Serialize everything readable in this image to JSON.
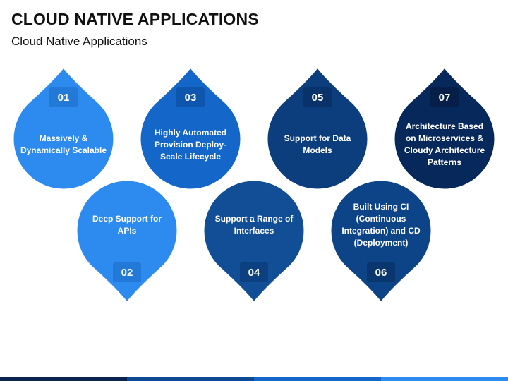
{
  "header": {
    "title": "CLOUD NATIVE APPLICATIONS",
    "subtitle": "Cloud Native Applications"
  },
  "items": [
    {
      "number": "01",
      "text": "Massively & Dynamically Scalable",
      "color": "#2D8BF0",
      "badge_color": "#2279D8",
      "orientation": "top"
    },
    {
      "number": "02",
      "text": "Deep Support for APIs",
      "color": "#2D8BF0",
      "badge_color": "#2279D8",
      "orientation": "bottom"
    },
    {
      "number": "03",
      "text": "Highly Automated Provision Deploy-Scale Lifecycle",
      "color": "#1466C8",
      "badge_color": "#0E55AE",
      "orientation": "top"
    },
    {
      "number": "04",
      "text": "Support a Range of Interfaces",
      "color": "#114E95",
      "badge_color": "#0C4080",
      "orientation": "bottom"
    },
    {
      "number": "05",
      "text": "Support for Data Models",
      "color": "#0C3E7E",
      "badge_color": "#09326A",
      "orientation": "top"
    },
    {
      "number": "06",
      "text": "Built Using CI (Continuous Integration) and CD (Deployment)",
      "color": "#0D4387",
      "badge_color": "#0A3670",
      "orientation": "bottom"
    },
    {
      "number": "07",
      "text": "Architecture Based on Microservices & Cloudy Architecture Patterns",
      "color": "#07285A",
      "badge_color": "#051F48",
      "orientation": "top"
    }
  ],
  "colors": {
    "outline": "#ffffff",
    "bottom_bar": [
      "#08244F",
      "#0E4A94",
      "#1466C8",
      "#2D8BF0"
    ]
  }
}
